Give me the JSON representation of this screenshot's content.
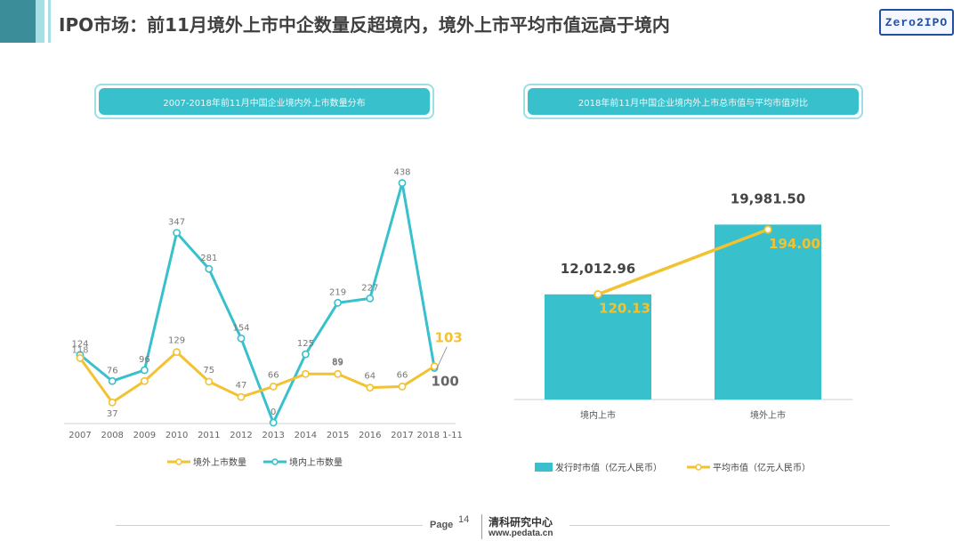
{
  "header": {
    "title": "IPO市场：前11月境外上市中企数量反超境内，境外上市平均市值远高于境内",
    "logo_text": "Zero2IPO",
    "colors": {
      "teal": "#38c0cc",
      "yellow": "#f2c230",
      "strip_dark": "#3a8d99",
      "strip_light": "#a7dfe4"
    }
  },
  "left_panel": {
    "banner": "2007-2018年前11月中国企业境内外上市数量分布"
  },
  "right_panel": {
    "banner": "2018年前11月中国企业境内外上市总市值与平均市值对比"
  },
  "chart_data": [
    {
      "type": "line",
      "title": "2007-2018年前11月中国企业境内外上市数量分布",
      "categories": [
        "2007",
        "2008",
        "2009",
        "2010",
        "2011",
        "2012",
        "2013",
        "2014",
        "2015",
        "2016",
        "2017",
        "2018 1-11"
      ],
      "series": [
        {
          "name": "境外上市数量",
          "color": "#f2c230",
          "values": [
            118,
            37,
            76,
            129,
            75,
            47,
            66,
            89,
            89,
            64,
            66,
            103
          ],
          "labels": [
            "",
            "37",
            "",
            "129",
            "75",
            "47",
            "66",
            "",
            "89",
            "64",
            "66",
            "103"
          ]
        },
        {
          "name": "境内上市数量",
          "color": "#38c0cc",
          "values": [
            124,
            76,
            96,
            347,
            281,
            154,
            0,
            125,
            219,
            227,
            438,
            100
          ],
          "labels": [
            "124",
            "76",
            "96",
            "347",
            "281",
            "154",
            "0",
            "125",
            "219",
            "227",
            "438",
            "100"
          ]
        }
      ],
      "overlap_labels": [
        "118",
        "89"
      ],
      "legend_position": "bottom",
      "ylim": [
        0,
        460
      ],
      "grid": false
    },
    {
      "type": "bar",
      "title": "2018年前11月中国企业境内外上市总市值与平均市值对比",
      "categories": [
        "境内上市",
        "境外上市"
      ],
      "series": [
        {
          "name": "发行时市值（亿元人民币）",
          "kind": "bar",
          "color": "#38c0cc",
          "values": [
            12012.96,
            19981.5
          ],
          "labels": [
            "12,012.96",
            "19,981.50"
          ]
        },
        {
          "name": "平均市值（亿元人民币）",
          "kind": "line",
          "color": "#f2c230",
          "values": [
            120.13,
            194.0
          ],
          "labels": [
            "120.13",
            "194.00"
          ]
        }
      ],
      "legend_position": "bottom",
      "grid": false
    }
  ],
  "footer": {
    "page_label": "Page",
    "page_number": "14",
    "org": "清科研究中心",
    "url": "www.pedata.cn"
  }
}
